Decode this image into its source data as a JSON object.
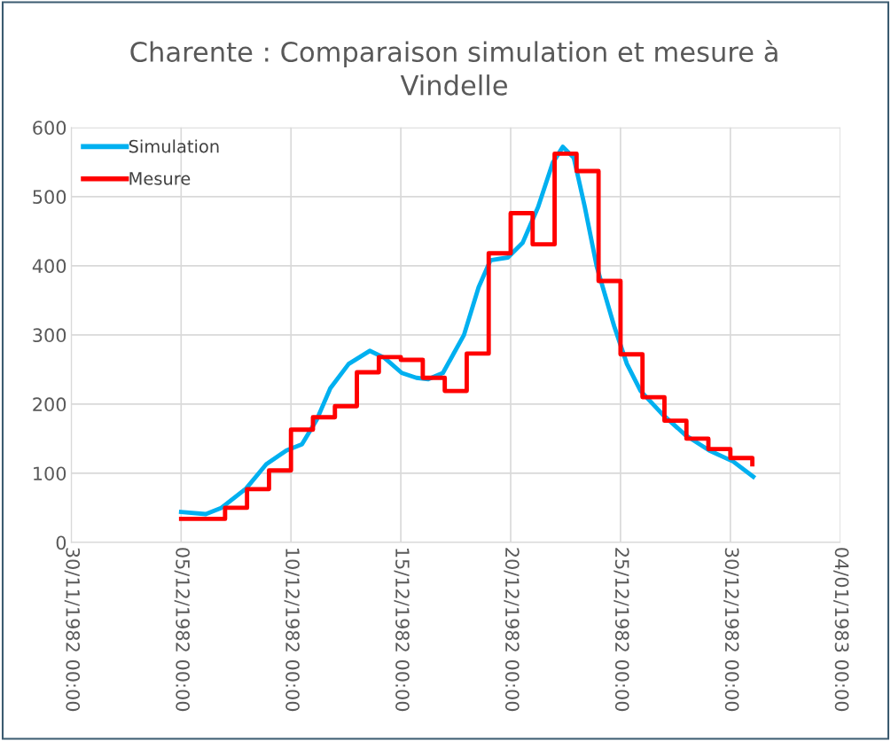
{
  "chart_data": {
    "type": "line",
    "title": "Charente : Comparaison simulation et mesure à Vindelle",
    "xlim": [
      "1982-11-30",
      "1983-01-04"
    ],
    "xticks": [
      {
        "value": "1982-11-30",
        "label": "30/11/1982 00:00"
      },
      {
        "value": "1982-12-05",
        "label": "05/12/1982 00:00"
      },
      {
        "value": "1982-12-10",
        "label": "10/12/1982 00:00"
      },
      {
        "value": "1982-12-15",
        "label": "15/12/1982 00:00"
      },
      {
        "value": "1982-12-20",
        "label": "20/12/1982 00:00"
      },
      {
        "value": "1982-12-25",
        "label": "25/12/1982 00:00"
      },
      {
        "value": "1982-12-30",
        "label": "30/12/1982 00:00"
      },
      {
        "value": "1983-01-04",
        "label": "04/01/1983 00:00"
      }
    ],
    "ylim": [
      0,
      600
    ],
    "yticks": [
      0,
      100,
      200,
      300,
      400,
      500,
      600
    ],
    "grid": true,
    "legend": "top left",
    "marker": "none",
    "line_style": "solid",
    "series": [
      {
        "name": "Simulation",
        "color": "#00b0f0",
        "x": [
          "1982-12-05T00:00",
          "1982-12-06T03:00",
          "1982-12-06T20:00",
          "1982-12-07T23:00",
          "1982-12-08T21:00",
          "1982-12-09T19:00",
          "1982-12-10T12:00",
          "1982-12-11T04:00",
          "1982-12-11T19:00",
          "1982-12-12T15:00",
          "1982-12-13T14:00",
          "1982-12-14T06:00",
          "1982-12-15T01:00",
          "1982-12-15T17:00",
          "1982-12-16T06:00",
          "1982-12-16T22:00",
          "1982-12-17T21:00",
          "1982-12-18T13:00",
          "1982-12-19T02:00",
          "1982-12-19T21:00",
          "1982-12-20T13:00",
          "1982-12-21T06:00",
          "1982-12-21T22:00",
          "1982-12-22T09:00",
          "1982-12-22T21:00",
          "1982-12-23T09:00",
          "1982-12-23T22:00",
          "1982-12-24T17:00",
          "1982-12-25T07:00",
          "1982-12-25T22:00",
          "1982-12-26T22:00",
          "1982-12-27T23:00",
          "1982-12-29T01:00",
          "1982-12-30T03:00",
          "1982-12-31T01:00"
        ],
        "values": [
          44,
          41,
          50,
          78,
          113,
          133,
          142,
          177,
          223,
          258,
          277,
          267,
          245,
          238,
          236,
          245,
          300,
          369,
          408,
          412,
          433,
          485,
          549,
          572,
          556,
          485,
          399,
          313,
          258,
          219,
          185,
          155,
          133,
          117,
          95
        ]
      },
      {
        "name": "Mesure",
        "type": "step",
        "color": "#ff0000",
        "x": [
          "1982-12-05",
          "1982-12-06",
          "1982-12-07",
          "1982-12-08",
          "1982-12-09",
          "1982-12-10",
          "1982-12-11",
          "1982-12-12",
          "1982-12-13",
          "1982-12-14",
          "1982-12-15",
          "1982-12-16",
          "1982-12-17",
          "1982-12-18",
          "1982-12-19",
          "1982-12-20",
          "1982-12-21",
          "1982-12-22",
          "1982-12-23",
          "1982-12-24",
          "1982-12-25",
          "1982-12-26",
          "1982-12-27",
          "1982-12-28",
          "1982-12-29",
          "1982-12-30",
          "1982-12-31"
        ],
        "values": [
          34,
          34,
          50,
          77,
          104,
          163,
          181,
          197,
          246,
          268,
          264,
          238,
          219,
          273,
          418,
          476,
          431,
          562,
          537,
          378,
          272,
          210,
          176,
          150,
          135,
          122,
          113
        ]
      }
    ]
  }
}
